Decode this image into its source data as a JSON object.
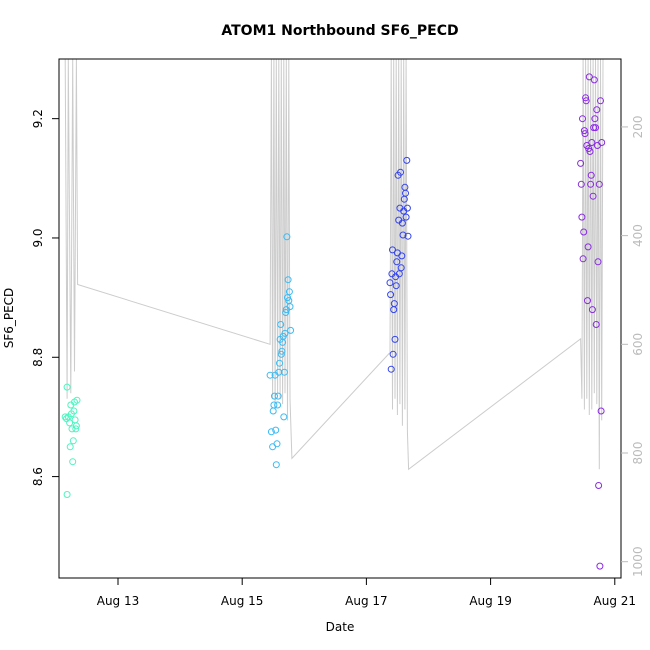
{
  "chart_data": {
    "type": "scatter",
    "title": "ATOM1 Northbound SF6_PECD",
    "xlabel": "Date",
    "ylabel": "SF6_PECD",
    "x_ticks": [
      "Aug 13",
      "Aug 15",
      "Aug 17",
      "Aug 19",
      "Aug 21"
    ],
    "x_tick_days": [
      13,
      15,
      17,
      19,
      21
    ],
    "xlim": [
      12.05,
      21.1
    ],
    "y_ticks": [
      8.6,
      8.8,
      9.0,
      9.2
    ],
    "y_tick_labels": [
      "8.6",
      "8.8",
      "9.0",
      "9.2"
    ],
    "ylim": [
      8.43,
      9.3
    ],
    "y2_ticks": [
      200,
      400,
      600,
      800,
      1000
    ],
    "y2_tick_labels": [
      "200",
      "400",
      "600",
      "800",
      "1000"
    ],
    "y2lim": [
      1030,
      75
    ],
    "grid": false,
    "series": [
      {
        "color": "#4DF5C0",
        "points": [
          [
            12.18,
            8.57
          ],
          [
            12.18,
            8.75
          ],
          [
            12.15,
            8.7
          ],
          [
            12.17,
            8.697
          ],
          [
            12.2,
            8.7
          ],
          [
            12.22,
            8.69
          ],
          [
            12.23,
            8.65
          ],
          [
            12.24,
            8.72
          ],
          [
            12.25,
            8.705
          ],
          [
            12.26,
            8.68
          ],
          [
            12.27,
            8.625
          ],
          [
            12.28,
            8.66
          ],
          [
            12.29,
            8.71
          ],
          [
            12.3,
            8.725
          ],
          [
            12.31,
            8.695
          ],
          [
            12.32,
            8.68
          ],
          [
            12.33,
            8.685
          ],
          [
            12.34,
            8.728
          ]
        ]
      },
      {
        "color": "#3DBAF2",
        "points": [
          [
            15.45,
            8.77
          ],
          [
            15.47,
            8.675
          ],
          [
            15.49,
            8.65
          ],
          [
            15.5,
            8.71
          ],
          [
            15.51,
            8.72
          ],
          [
            15.52,
            8.735
          ],
          [
            15.53,
            8.77
          ],
          [
            15.54,
            8.678
          ],
          [
            15.55,
            8.62
          ],
          [
            15.56,
            8.655
          ],
          [
            15.57,
            8.72
          ],
          [
            15.58,
            8.735
          ],
          [
            15.59,
            8.775
          ],
          [
            15.6,
            8.79
          ],
          [
            15.61,
            8.83
          ],
          [
            15.62,
            8.855
          ],
          [
            15.63,
            8.805
          ],
          [
            15.64,
            8.81
          ],
          [
            15.65,
            8.825
          ],
          [
            15.66,
            8.835
          ],
          [
            15.67,
            8.7
          ],
          [
            15.68,
            8.775
          ],
          [
            15.69,
            8.84
          ],
          [
            15.7,
            8.875
          ],
          [
            15.71,
            8.88
          ],
          [
            15.72,
            9.002
          ],
          [
            15.73,
            8.9
          ],
          [
            15.74,
            8.93
          ],
          [
            15.75,
            8.895
          ],
          [
            15.76,
            8.91
          ],
          [
            15.77,
            8.885
          ],
          [
            15.78,
            8.845
          ]
        ]
      },
      {
        "color": "#3344EE",
        "points": [
          [
            17.38,
            8.925
          ],
          [
            17.39,
            8.905
          ],
          [
            17.4,
            8.78
          ],
          [
            17.41,
            8.94
          ],
          [
            17.42,
            8.98
          ],
          [
            17.43,
            8.805
          ],
          [
            17.44,
            8.88
          ],
          [
            17.45,
            8.89
          ],
          [
            17.46,
            8.83
          ],
          [
            17.47,
            8.935
          ],
          [
            17.48,
            8.92
          ],
          [
            17.49,
            8.96
          ],
          [
            17.5,
            8.975
          ],
          [
            17.51,
            9.105
          ],
          [
            17.52,
            9.03
          ],
          [
            17.53,
            8.94
          ],
          [
            17.54,
            9.05
          ],
          [
            17.55,
            9.11
          ],
          [
            17.56,
            8.95
          ],
          [
            17.57,
            8.97
          ],
          [
            17.58,
            9.025
          ],
          [
            17.59,
            9.005
          ],
          [
            17.6,
            9.045
          ],
          [
            17.61,
            9.065
          ],
          [
            17.62,
            9.085
          ],
          [
            17.63,
            9.075
          ],
          [
            17.64,
            9.035
          ],
          [
            17.65,
            9.13
          ],
          [
            17.66,
            9.05
          ],
          [
            17.67,
            9.003
          ]
        ]
      },
      {
        "color": "#8A2BE2",
        "points": [
          [
            20.45,
            9.125
          ],
          [
            20.46,
            9.09
          ],
          [
            20.47,
            9.035
          ],
          [
            20.48,
            9.2
          ],
          [
            20.49,
            8.965
          ],
          [
            20.5,
            9.01
          ],
          [
            20.51,
            9.18
          ],
          [
            20.52,
            9.175
          ],
          [
            20.53,
            9.235
          ],
          [
            20.54,
            9.23
          ],
          [
            20.55,
            9.155
          ],
          [
            20.56,
            8.895
          ],
          [
            20.57,
            8.985
          ],
          [
            20.58,
            9.15
          ],
          [
            20.59,
            9.27
          ],
          [
            20.6,
            9.145
          ],
          [
            20.61,
            9.09
          ],
          [
            20.62,
            9.105
          ],
          [
            20.63,
            9.16
          ],
          [
            20.64,
            8.88
          ],
          [
            20.65,
            9.07
          ],
          [
            20.66,
            9.185
          ],
          [
            20.67,
            9.265
          ],
          [
            20.68,
            9.2
          ],
          [
            20.69,
            9.185
          ],
          [
            20.7,
            8.855
          ],
          [
            20.71,
            9.215
          ],
          [
            20.72,
            9.155
          ],
          [
            20.73,
            8.96
          ],
          [
            20.74,
            8.585
          ],
          [
            20.75,
            9.09
          ],
          [
            20.76,
            8.45
          ],
          [
            20.77,
            9.23
          ],
          [
            20.78,
            8.71
          ],
          [
            20.79,
            9.16
          ]
        ]
      }
    ],
    "line_series": {
      "color": "#cccccc",
      "axis": "right",
      "points": [
        [
          12.15,
          75
        ],
        [
          12.18,
          700
        ],
        [
          12.2,
          75
        ],
        [
          12.24,
          690
        ],
        [
          12.27,
          75
        ],
        [
          12.3,
          650
        ],
        [
          12.33,
          75
        ],
        [
          12.35,
          490
        ],
        [
          15.45,
          600
        ],
        [
          15.47,
          75
        ],
        [
          15.49,
          700
        ],
        [
          15.51,
          75
        ],
        [
          15.53,
          720
        ],
        [
          15.55,
          75
        ],
        [
          15.57,
          690
        ],
        [
          15.59,
          75
        ],
        [
          15.61,
          700
        ],
        [
          15.63,
          75
        ],
        [
          15.65,
          710
        ],
        [
          15.67,
          75
        ],
        [
          15.69,
          690
        ],
        [
          15.71,
          75
        ],
        [
          15.73,
          740
        ],
        [
          15.75,
          75
        ],
        [
          15.77,
          700
        ],
        [
          15.8,
          810
        ],
        [
          17.38,
          615
        ],
        [
          17.4,
          75
        ],
        [
          17.42,
          720
        ],
        [
          17.44,
          75
        ],
        [
          17.46,
          700
        ],
        [
          17.48,
          75
        ],
        [
          17.5,
          730
        ],
        [
          17.52,
          75
        ],
        [
          17.54,
          710
        ],
        [
          17.56,
          75
        ],
        [
          17.58,
          750
        ],
        [
          17.6,
          75
        ],
        [
          17.62,
          720
        ],
        [
          17.64,
          75
        ],
        [
          17.66,
          760
        ],
        [
          17.68,
          830
        ],
        [
          20.45,
          590
        ],
        [
          20.47,
          700
        ],
        [
          20.49,
          75
        ],
        [
          20.51,
          720
        ],
        [
          20.53,
          75
        ],
        [
          20.55,
          700
        ],
        [
          20.57,
          75
        ],
        [
          20.59,
          730
        ],
        [
          20.61,
          75
        ],
        [
          20.63,
          720
        ],
        [
          20.65,
          75
        ],
        [
          20.67,
          690
        ],
        [
          20.69,
          75
        ],
        [
          20.71,
          710
        ],
        [
          20.73,
          75
        ],
        [
          20.75,
          830
        ],
        [
          20.77,
          75
        ],
        [
          20.79,
          740
        ],
        [
          20.81,
          75
        ]
      ]
    }
  }
}
